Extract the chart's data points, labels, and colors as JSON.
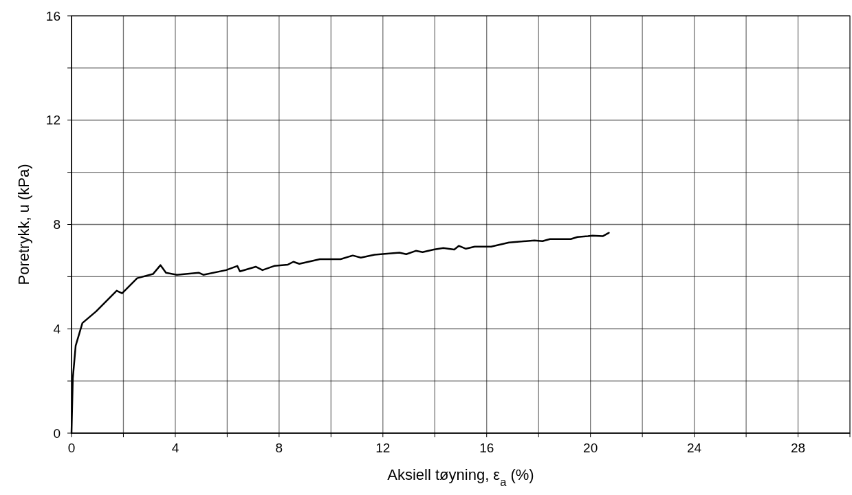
{
  "chart_data": {
    "type": "line",
    "xlabel": "Aksiell tøyning, ε$_{a}$ (%)",
    "ylabel": "Poretrykk, u (kPa)",
    "xlim": [
      0,
      30
    ],
    "ylim": [
      0,
      16
    ],
    "xticks": [
      0,
      {
        "value": 2,
        "label": null
      },
      4,
      {
        "value": 6,
        "label": null
      },
      8,
      {
        "value": 10,
        "label": null
      },
      12,
      {
        "value": 14,
        "label": null
      },
      16,
      {
        "value": 18,
        "label": null
      },
      20,
      {
        "value": 22,
        "label": null
      },
      24,
      {
        "value": 26,
        "label": null
      },
      28,
      {
        "value": 30,
        "label": null
      }
    ],
    "yticks": [
      0,
      {
        "value": 2,
        "label": null
      },
      4,
      {
        "value": 6,
        "label": null
      },
      8,
      {
        "value": 10,
        "label": null
      },
      12,
      {
        "value": 14,
        "label": null
      },
      16
    ],
    "grid": true,
    "marker": "none",
    "line_style": "solid",
    "series": [
      {
        "color": "#000000",
        "x": [
          0,
          0.05,
          0.16,
          0.42,
          0.95,
          1.74,
          1.95,
          2.53,
          3.14,
          3.43,
          3.64,
          4.06,
          4.9,
          5.08,
          5.96,
          6.39,
          6.49,
          7.1,
          7.36,
          7.81,
          8.34,
          8.55,
          8.78,
          9.57,
          10.37,
          10.84,
          11.15,
          11.68,
          12.64,
          12.9,
          13.27,
          13.53,
          13.96,
          14.33,
          14.75,
          14.93,
          15.2,
          15.54,
          16.17,
          16.86,
          17.84,
          18.15,
          18.44,
          19.24,
          19.5,
          19.9,
          20.08,
          20.47,
          20.71
        ],
        "values": [
          0,
          2.1,
          3.35,
          4.22,
          4.67,
          5.46,
          5.36,
          5.94,
          6.1,
          6.44,
          6.15,
          6.07,
          6.15,
          6.07,
          6.25,
          6.41,
          6.2,
          6.38,
          6.25,
          6.41,
          6.46,
          6.57,
          6.49,
          6.67,
          6.67,
          6.81,
          6.73,
          6.84,
          6.92,
          6.86,
          6.99,
          6.94,
          7.04,
          7.1,
          7.04,
          7.18,
          7.07,
          7.15,
          7.15,
          7.31,
          7.39,
          7.36,
          7.44,
          7.44,
          7.52,
          7.55,
          7.57,
          7.55,
          7.68
        ]
      }
    ]
  }
}
